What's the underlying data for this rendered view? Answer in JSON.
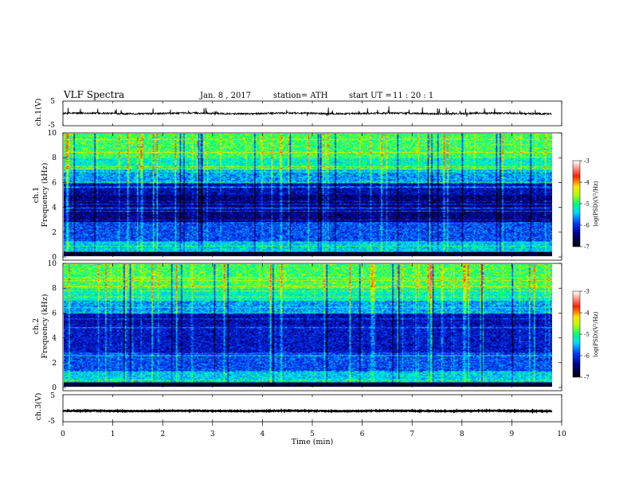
{
  "header": {
    "title": "VLF  Spectra",
    "date": "Jan.  8  , 2017",
    "station": "station= ATH",
    "start_label": "start  UT  =",
    "start_time": "11 : 20 : 1"
  },
  "chart_data": [
    {
      "type": "line",
      "id": "ch1-waveform",
      "ylabel": "ch.1(V)",
      "ytick_labels": [
        "5",
        "-5"
      ],
      "ylim": [
        -5,
        5
      ],
      "xlim": [
        0,
        10
      ],
      "baseline_v": 0.0,
      "noise_v": 0.35,
      "spike_density": "high"
    },
    {
      "type": "heatmap",
      "id": "ch1-spectrogram",
      "ylabel": "ch.1\nFrequency  (kHz)",
      "ylabel_lines": [
        "ch.1",
        "Frequency  (kHz)"
      ],
      "ytick_labels": [
        "10",
        "8",
        "6",
        "4",
        "2",
        "0"
      ],
      "yticks": [
        10,
        8,
        6,
        4,
        2,
        0
      ],
      "ylim": [
        0,
        10
      ],
      "xlim": [
        0,
        10
      ],
      "data_end_min": 9.8,
      "colorbar": {
        "label": "log(PSD)(V²/Hz)",
        "range": [
          -7,
          -3
        ],
        "tick_labels": [
          "-3",
          "-4",
          "-5",
          "-6",
          "-7"
        ]
      }
    },
    {
      "type": "heatmap",
      "id": "ch2-spectrogram",
      "ylabel": "ch.2\nFrequency  (kHz)",
      "ylabel_lines": [
        "ch.2",
        "Frequency  (kHz)"
      ],
      "ytick_labels": [
        "10",
        "8",
        "6",
        "4",
        "2",
        "0"
      ],
      "yticks": [
        10,
        8,
        6,
        4,
        2,
        0
      ],
      "ylim": [
        0,
        10
      ],
      "xlim": [
        0,
        10
      ],
      "data_end_min": 9.8,
      "colorbar": {
        "label": "log(PSD)(V²/Hz)",
        "range": [
          -7,
          -3
        ],
        "tick_labels": [
          "-3",
          "-4",
          "-5",
          "-6",
          "-7"
        ]
      }
    },
    {
      "type": "line",
      "id": "ch3-waveform",
      "ylabel": "ch.3(V)",
      "ytick_labels": [
        "5",
        "-5"
      ],
      "ylim": [
        -5,
        5
      ],
      "xlim": [
        0,
        10
      ],
      "baseline_v": -1.0,
      "noise_v": 0.15,
      "spike_density": "none"
    }
  ],
  "xaxis": {
    "label": "Time  (min)",
    "tick_labels": [
      "0",
      "1",
      "2",
      "3",
      "4",
      "5",
      "6",
      "7",
      "8",
      "9",
      "10"
    ],
    "ticks": [
      0,
      1,
      2,
      3,
      4,
      5,
      6,
      7,
      8,
      9,
      10
    ]
  },
  "colors": {
    "colormap": [
      "#ffffff",
      "#ff0000",
      "#ffff00",
      "#00ff00",
      "#00ffff",
      "#0000ff",
      "#000000"
    ]
  }
}
